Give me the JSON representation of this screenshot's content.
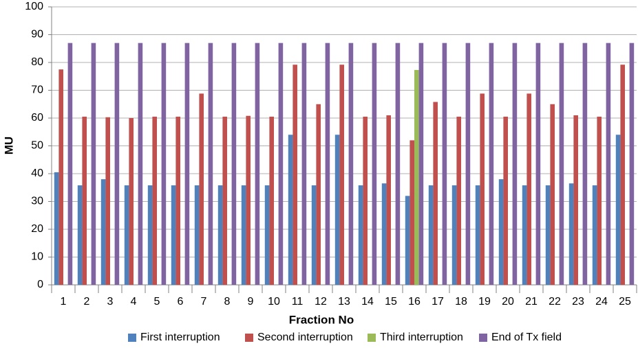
{
  "chart_data": {
    "type": "bar",
    "x_label": "Fraction No",
    "y_label": "MU",
    "categories": [
      "1",
      "2",
      "3",
      "4",
      "5",
      "6",
      "7",
      "8",
      "9",
      "10",
      "11",
      "12",
      "13",
      "14",
      "15",
      "16",
      "17",
      "18",
      "19",
      "20",
      "21",
      "22",
      "23",
      "24",
      "25"
    ],
    "series": [
      {
        "name": "First interruption",
        "color": "#4f81bd",
        "values": [
          40.5,
          35.8,
          38,
          35.8,
          35.8,
          35.8,
          35.8,
          35.8,
          35.8,
          35.8,
          54,
          35.8,
          54,
          35.8,
          36.5,
          32,
          35.8,
          35.8,
          35.8,
          38,
          35.8,
          35.8,
          36.5,
          35.8,
          54
        ]
      },
      {
        "name": "Second interruption",
        "color": "#c0504d",
        "values": [
          77.5,
          60.5,
          60.3,
          60,
          60.5,
          60.5,
          68.8,
          60.5,
          60.8,
          60.5,
          79.2,
          65,
          79.2,
          60.5,
          61,
          52,
          65.8,
          60.5,
          68.8,
          60.5,
          68.8,
          65,
          61,
          60.5,
          79.2
        ]
      },
      {
        "name": "Third interruption",
        "color": "#9bbb59",
        "values": [
          null,
          null,
          null,
          null,
          null,
          null,
          null,
          null,
          null,
          null,
          null,
          null,
          null,
          null,
          null,
          77.3,
          null,
          null,
          null,
          null,
          null,
          null,
          null,
          null,
          null
        ]
      },
      {
        "name": "End of Tx field",
        "color": "#8064a2",
        "values": [
          87,
          87,
          87,
          87,
          87,
          87,
          87,
          87,
          87,
          87,
          87,
          87,
          87,
          87,
          87,
          87,
          87,
          87,
          87,
          87,
          87,
          87,
          87,
          87,
          87
        ]
      }
    ],
    "ylim": [
      0,
      100
    ],
    "yticks": [
      0,
      10,
      20,
      30,
      40,
      50,
      60,
      70,
      80,
      90,
      100
    ],
    "grid": true,
    "legend": "bottom"
  }
}
